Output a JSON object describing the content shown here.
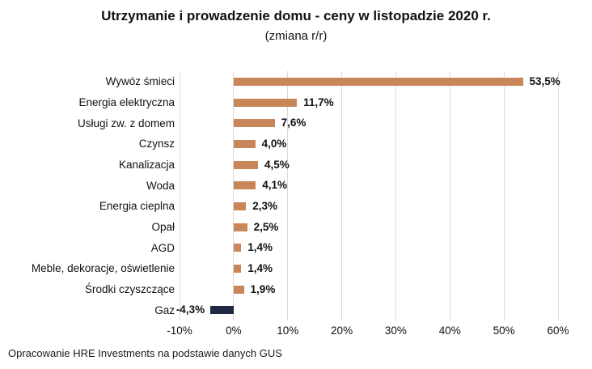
{
  "title": "Utrzymanie i prowadzenie domu - ceny w listopadzie 2020 r.",
  "subtitle": "(zmiana r/r)",
  "footer": "Opracowanie HRE Investments na podstawie danych GUS",
  "chart_data": {
    "type": "bar",
    "orientation": "horizontal",
    "title": "Utrzymanie i prowadzenie domu - ceny w listopadzie 2020 r.",
    "subtitle": "(zmiana r/r)",
    "categories": [
      "Wywóz śmieci",
      "Energia elektryczna",
      "Usługi zw. z domem",
      "Czynsz",
      "Kanalizacja",
      "Woda",
      "Energia cieplna",
      "Opał",
      "AGD",
      "Meble, dekoracje, oświetlenie",
      "Środki czyszczące",
      "Gaz"
    ],
    "values": [
      53.5,
      11.7,
      7.6,
      4.0,
      4.5,
      4.1,
      2.3,
      2.5,
      1.4,
      1.4,
      1.9,
      -4.3
    ],
    "value_labels": [
      "53,5%",
      "11,7%",
      "7,6%",
      "4,0%",
      "4,5%",
      "4,1%",
      "2,3%",
      "2,5%",
      "1,4%",
      "1,4%",
      "1,9%",
      "-4,3%"
    ],
    "xlim": [
      -10,
      60
    ],
    "xticks": [
      -10,
      0,
      10,
      20,
      30,
      40,
      50,
      60
    ],
    "xtick_labels": [
      "-10%",
      "0%",
      "10%",
      "20%",
      "30%",
      "40%",
      "50%",
      "60%"
    ],
    "grid": true,
    "legend": "none",
    "colors": {
      "positive_bar": "#C98658",
      "negative_bar": "#1E2940",
      "gridline": "#D9D9D9",
      "text": "#111111"
    }
  }
}
